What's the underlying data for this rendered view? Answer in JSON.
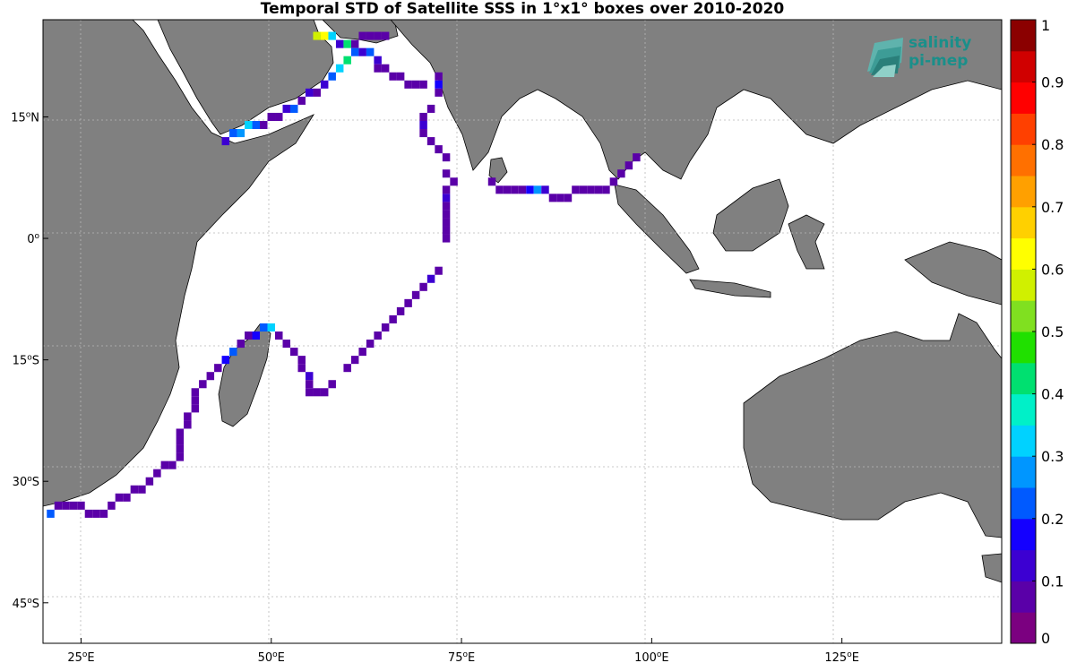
{
  "title": "Temporal STD of Satellite SSS in 1°x1° boxes over 2010-2020",
  "logo": {
    "line1": "salinity",
    "line2": "pi-mep",
    "color": "#1a8f8a"
  },
  "map": {
    "lon_range": [
      20,
      146
    ],
    "lat_range": [
      -50,
      27
    ],
    "land_color": "#808080",
    "ocean_color": "#ffffff",
    "grid_style": "dotted"
  },
  "axes": {
    "x_ticks": [
      {
        "value": 25,
        "num": "25",
        "unit": "E"
      },
      {
        "value": 50,
        "num": "50",
        "unit": "E"
      },
      {
        "value": 75,
        "num": "75",
        "unit": "E"
      },
      {
        "value": 100,
        "num": "100",
        "unit": "E"
      },
      {
        "value": 125,
        "num": "125",
        "unit": "E"
      }
    ],
    "y_ticks": [
      {
        "value": 15,
        "num": "15",
        "unit": "N"
      },
      {
        "value": 0,
        "num": "0",
        "unit": ""
      },
      {
        "value": -15,
        "num": "15",
        "unit": "S"
      },
      {
        "value": -30,
        "num": "30",
        "unit": "S"
      },
      {
        "value": -45,
        "num": "45",
        "unit": "S"
      }
    ]
  },
  "colorbar": {
    "min": 0,
    "max": 1,
    "labels": [
      "0",
      "0.1",
      "0.2",
      "0.3",
      "0.4",
      "0.5",
      "0.6",
      "0.7",
      "0.8",
      "0.9",
      "1"
    ],
    "colors": [
      "#7b0080",
      "#5a00a8",
      "#3c00d2",
      "#1400ff",
      "#005aff",
      "#0096ff",
      "#00d2ff",
      "#00f0c8",
      "#00e070",
      "#20e000",
      "#80e020",
      "#d0f000",
      "#ffff00",
      "#ffd000",
      "#ffa000",
      "#ff7000",
      "#ff4000",
      "#ff0000",
      "#d00000",
      "#8b0000"
    ]
  },
  "chart_data": {
    "type": "heatmap",
    "title": "Temporal STD of Satellite SSS in 1°x1° boxes over 2010-2020",
    "xlabel": "",
    "ylabel": "",
    "x_range": [
      20,
      146
    ],
    "y_range": [
      -50,
      27
    ],
    "value_range": [
      0,
      1
    ],
    "notes_cells": "lon/lat box centres with STD values",
    "cells": [
      [
        56,
        25,
        0.55
      ],
      [
        57,
        25,
        0.6
      ],
      [
        58,
        25,
        0.3
      ],
      [
        59,
        24,
        0.1
      ],
      [
        60,
        24,
        0.4
      ],
      [
        61,
        24,
        0.05
      ],
      [
        62,
        25,
        0.05
      ],
      [
        63,
        25,
        0.05
      ],
      [
        64,
        25,
        0.05
      ],
      [
        65,
        25,
        0.05
      ],
      [
        61,
        23,
        0.2
      ],
      [
        62,
        23,
        0.1
      ],
      [
        63,
        23,
        0.2
      ],
      [
        64,
        22,
        0.1
      ],
      [
        64,
        21,
        0.05
      ],
      [
        65,
        21,
        0.05
      ],
      [
        66,
        20,
        0.05
      ],
      [
        67,
        20,
        0.05
      ],
      [
        68,
        19,
        0.05
      ],
      [
        69,
        19,
        0.05
      ],
      [
        70,
        19,
        0.05
      ],
      [
        60,
        22,
        0.4
      ],
      [
        59,
        21,
        0.3
      ],
      [
        58,
        20,
        0.2
      ],
      [
        57,
        19,
        0.1
      ],
      [
        56,
        18,
        0.05
      ],
      [
        55,
        18,
        0.1
      ],
      [
        54,
        17,
        0.05
      ],
      [
        53,
        16,
        0.2
      ],
      [
        52,
        16,
        0.1
      ],
      [
        51,
        15,
        0.05
      ],
      [
        50,
        15,
        0.05
      ],
      [
        49,
        14,
        0.05
      ],
      [
        48,
        14,
        0.2
      ],
      [
        47,
        14,
        0.3
      ],
      [
        46,
        13,
        0.25
      ],
      [
        45,
        13,
        0.2
      ],
      [
        44,
        12,
        0.1
      ],
      [
        72,
        20,
        0.05
      ],
      [
        72,
        19,
        0.15
      ],
      [
        72,
        18,
        0.05
      ],
      [
        71,
        16,
        0.05
      ],
      [
        70,
        15,
        0.05
      ],
      [
        70,
        14,
        0.1
      ],
      [
        70,
        13,
        0.05
      ],
      [
        71,
        12,
        0.05
      ],
      [
        72,
        11,
        0.05
      ],
      [
        73,
        10,
        0.05
      ],
      [
        73,
        8,
        0.05
      ],
      [
        74,
        7,
        0.05
      ],
      [
        73,
        6,
        0.05
      ],
      [
        73,
        5,
        0.1
      ],
      [
        73,
        4,
        0.05
      ],
      [
        73,
        3,
        0.05
      ],
      [
        73,
        2,
        0.05
      ],
      [
        73,
        1,
        0.05
      ],
      [
        73,
        0,
        0.05
      ],
      [
        79,
        7,
        0.05
      ],
      [
        80,
        6,
        0.05
      ],
      [
        81,
        6,
        0.05
      ],
      [
        82,
        6,
        0.05
      ],
      [
        83,
        6,
        0.05
      ],
      [
        84,
        6,
        0.15
      ],
      [
        85,
        6,
        0.25
      ],
      [
        86,
        6,
        0.1
      ],
      [
        87,
        5,
        0.05
      ],
      [
        88,
        5,
        0.05
      ],
      [
        89,
        5,
        0.05
      ],
      [
        90,
        6,
        0.05
      ],
      [
        91,
        6,
        0.05
      ],
      [
        92,
        6,
        0.05
      ],
      [
        93,
        6,
        0.05
      ],
      [
        94,
        6,
        0.05
      ],
      [
        95,
        7,
        0.05
      ],
      [
        96,
        8,
        0.05
      ],
      [
        97,
        9,
        0.05
      ],
      [
        98,
        10,
        0.05
      ],
      [
        72,
        -4,
        0.05
      ],
      [
        71,
        -5,
        0.1
      ],
      [
        70,
        -6,
        0.05
      ],
      [
        69,
        -7,
        0.05
      ],
      [
        68,
        -8,
        0.05
      ],
      [
        67,
        -9,
        0.05
      ],
      [
        66,
        -10,
        0.05
      ],
      [
        65,
        -11,
        0.05
      ],
      [
        64,
        -12,
        0.05
      ],
      [
        63,
        -13,
        0.05
      ],
      [
        62,
        -14,
        0.05
      ],
      [
        61,
        -15,
        0.05
      ],
      [
        60,
        -16,
        0.05
      ],
      [
        48,
        -12,
        0.15
      ],
      [
        49,
        -11,
        0.2
      ],
      [
        50,
        -11,
        0.3
      ],
      [
        51,
        -12,
        0.05
      ],
      [
        52,
        -13,
        0.05
      ],
      [
        53,
        -14,
        0.05
      ],
      [
        54,
        -15,
        0.05
      ],
      [
        54,
        -16,
        0.05
      ],
      [
        55,
        -17,
        0.1
      ],
      [
        55,
        -18,
        0.05
      ],
      [
        55,
        -19,
        0.05
      ],
      [
        56,
        -19,
        0.05
      ],
      [
        57,
        -19,
        0.05
      ],
      [
        58,
        -18,
        0.05
      ],
      [
        47,
        -12,
        0.05
      ],
      [
        46,
        -13,
        0.05
      ],
      [
        45,
        -14,
        0.2
      ],
      [
        44,
        -15,
        0.15
      ],
      [
        43,
        -16,
        0.05
      ],
      [
        42,
        -17,
        0.05
      ],
      [
        41,
        -18,
        0.05
      ],
      [
        40,
        -19,
        0.05
      ],
      [
        40,
        -20,
        0.05
      ],
      [
        40,
        -21,
        0.05
      ],
      [
        39,
        -22,
        0.05
      ],
      [
        39,
        -23,
        0.05
      ],
      [
        38,
        -24,
        0.05
      ],
      [
        38,
        -25,
        0.05
      ],
      [
        38,
        -26,
        0.05
      ],
      [
        38,
        -27,
        0.05
      ],
      [
        37,
        -28,
        0.05
      ],
      [
        36,
        -28,
        0.05
      ],
      [
        35,
        -29,
        0.05
      ],
      [
        34,
        -30,
        0.05
      ],
      [
        33,
        -31,
        0.05
      ],
      [
        32,
        -31,
        0.05
      ],
      [
        31,
        -32,
        0.05
      ],
      [
        30,
        -32,
        0.05
      ],
      [
        29,
        -33,
        0.05
      ],
      [
        28,
        -34,
        0.05
      ],
      [
        27,
        -34,
        0.05
      ],
      [
        26,
        -34,
        0.05
      ],
      [
        25,
        -33,
        0.05
      ],
      [
        24,
        -33,
        0.05
      ],
      [
        23,
        -33,
        0.05
      ],
      [
        22,
        -33,
        0.05
      ],
      [
        21,
        -34,
        0.2
      ]
    ]
  }
}
